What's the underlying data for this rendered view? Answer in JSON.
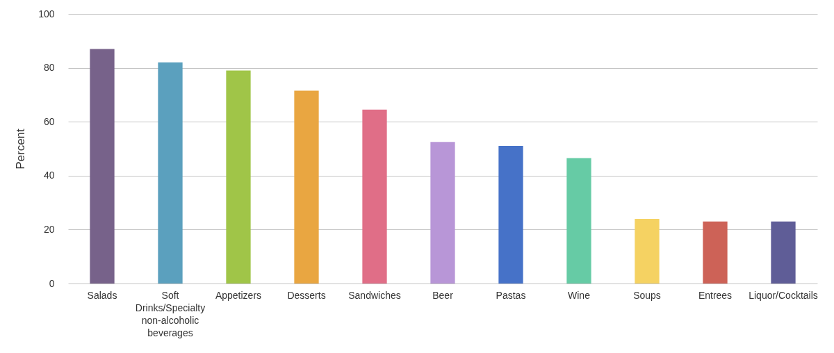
{
  "chart_data": {
    "type": "bar",
    "ylabel": "Percent",
    "categories": [
      "Salads",
      "Soft Drinks/Specialty non-alcoholic beverages",
      "Appetizers",
      "Desserts",
      "Sandwiches",
      "Beer",
      "Pastas",
      "Wine",
      "Soups",
      "Entrees",
      "Liquor/Cocktails"
    ],
    "values": [
      87,
      82,
      79,
      71.5,
      64.5,
      52.5,
      51,
      46.5,
      24,
      23,
      23
    ],
    "colors": [
      "#77628a",
      "#5ba0be",
      "#a0c548",
      "#e9a641",
      "#e06e87",
      "#b896d7",
      "#4672c8",
      "#66cba5",
      "#f5d262",
      "#cd6257",
      "#5f5d97"
    ],
    "ylim": [
      0,
      100
    ],
    "yticks": [
      0,
      20,
      40,
      60,
      80,
      100
    ],
    "grid": "y"
  }
}
